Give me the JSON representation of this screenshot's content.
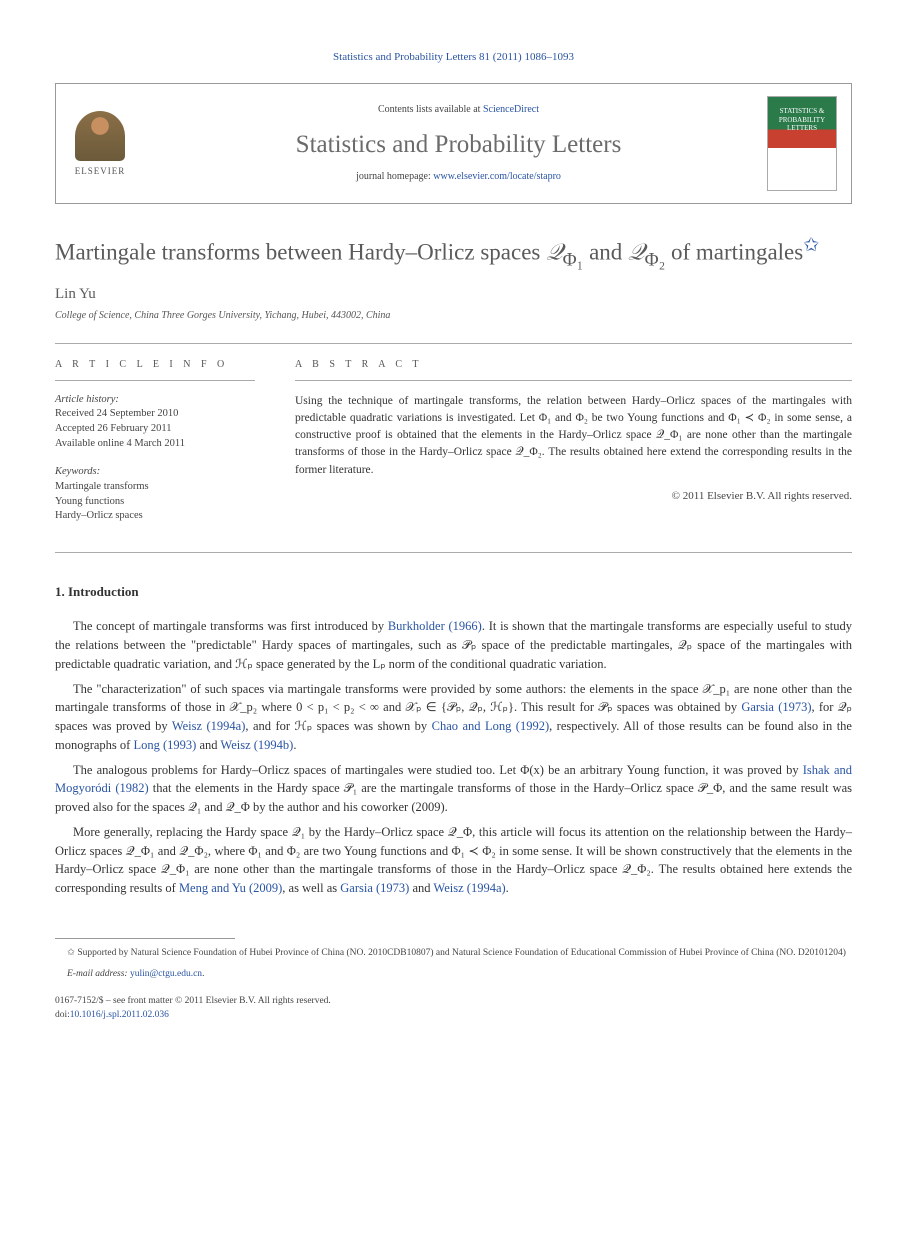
{
  "header": {
    "citation": "Statistics and Probability Letters 81 (2011) 1086–1093"
  },
  "journal_box": {
    "elsevier_label": "ELSEVIER",
    "contents_prefix": "Contents lists available at ",
    "contents_link": "ScienceDirect",
    "journal_name": "Statistics and Probability Letters",
    "homepage_prefix": "journal homepage: ",
    "homepage_url": "www.elsevier.com/locate/stapro",
    "cover_text": "STATISTICS & PROBABILITY LETTERS"
  },
  "title": {
    "text_part1": "Martingale transforms between Hardy–Orlicz spaces ",
    "math1": "𝒬",
    "sub1": "Φ₁",
    "text_mid": " and ",
    "math2": "𝒬",
    "sub2": "Φ₂",
    "text_part2": " of martingales",
    "star": "✩"
  },
  "author": {
    "name": "Lin Yu",
    "affiliation": "College of Science, China Three Gorges University, Yichang, Hubei, 443002, China"
  },
  "info": {
    "label": "A R T I C L E   I N F O",
    "history_title": "Article history:",
    "history_lines": [
      "Received 24 September 2010",
      "Accepted 26 February 2011",
      "Available online 4 March 2011"
    ],
    "keywords_title": "Keywords:",
    "keywords": [
      "Martingale transforms",
      "Young functions",
      "Hardy–Orlicz spaces"
    ]
  },
  "abstract": {
    "label": "A B S T R A C T",
    "text": "Using the technique of martingale transforms, the relation between Hardy–Orlicz spaces of the martingales with predictable quadratic variations is investigated. Let Φ₁ and Φ₂ be two Young functions and Φ₁ ≺ Φ₂ in some sense, a constructive proof is obtained that the elements in the Hardy–Orlicz space 𝒬_Φ₁ are none other than the martingale transforms of those in the Hardy–Orlicz space 𝒬_Φ₂. The results obtained here extend the corresponding results in the former literature.",
    "copyright": "© 2011 Elsevier B.V. All rights reserved."
  },
  "sections": {
    "intro_heading": "1. Introduction",
    "para1_parts": [
      "The concept of martingale transforms was first introduced by ",
      "Burkholder (1966)",
      ". It is shown that the martingale transforms are especially useful to study the relations between the \"predictable\" Hardy spaces of martingales, such as 𝒫ₚ space of the predictable martingales, 𝒬ₚ space of the martingales with predictable quadratic variation, and ℋₚ space generated by the Lₚ norm of the conditional quadratic variation."
    ],
    "para2_parts": [
      "The \"characterization\" of such spaces via martingale transforms were provided by some authors: the elements in the space 𝒳_p₁ are none other than the martingale transforms of those in 𝒳_p₂ where 0 < p₁ < p₂ < ∞ and 𝒳ₚ ∈ {𝒫ₚ, 𝒬ₚ, ℋₚ}. This result for 𝒫ₚ spaces was obtained by ",
      "Garsia (1973)",
      ", for 𝒬ₚ spaces was proved by ",
      "Weisz (1994a)",
      ", and for ℋₚ spaces was shown by ",
      "Chao and Long (1992)",
      ", respectively. All of those results can be found also in the monographs of ",
      "Long (1993)",
      " and ",
      "Weisz (1994b)",
      "."
    ],
    "para3_parts": [
      "The analogous problems for Hardy–Orlicz spaces of martingales were studied too. Let Φ(x) be an arbitrary Young function, it was proved by ",
      "Ishak and Mogyoródi (1982)",
      " that the elements in the Hardy space 𝒫₁ are the martingale transforms of those in the Hardy–Orlicz space 𝒫_Φ, and the same result was proved also for the spaces 𝒬₁ and 𝒬_Φ by the author and his coworker (2009)."
    ],
    "para4_parts": [
      "More generally, replacing the Hardy space 𝒬₁ by the Hardy–Orlicz space 𝒬_Φ, this article will focus its attention on the relationship between the Hardy–Orlicz spaces 𝒬_Φ₁ and 𝒬_Φ₂, where Φ₁ and Φ₂ are two Young functions and Φ₁ ≺ Φ₂ in some sense. It will be shown constructively that the elements in the Hardy–Orlicz space 𝒬_Φ₁ are none other than the martingale transforms of those in the Hardy–Orlicz space 𝒬_Φ₂. The results obtained here extends the corresponding results of ",
      "Meng and Yu (2009)",
      ", as well as ",
      "Garsia (1973)",
      " and ",
      "Weisz (1994a)",
      "."
    ]
  },
  "footnotes": {
    "funding": "✩ Supported by Natural Science Foundation of Hubei Province of China (NO. 2010CDB10807) and Natural Science Foundation of Educational Commission of Hubei Province of China (NO. D20101204)",
    "email_label": "E-mail address: ",
    "email": "yulin@ctgu.edu.cn",
    "email_suffix": "."
  },
  "footer": {
    "issn_line": "0167-7152/$ – see front matter © 2011 Elsevier B.V. All rights reserved.",
    "doi_label": "doi:",
    "doi": "10.1016/j.spl.2011.02.036"
  }
}
